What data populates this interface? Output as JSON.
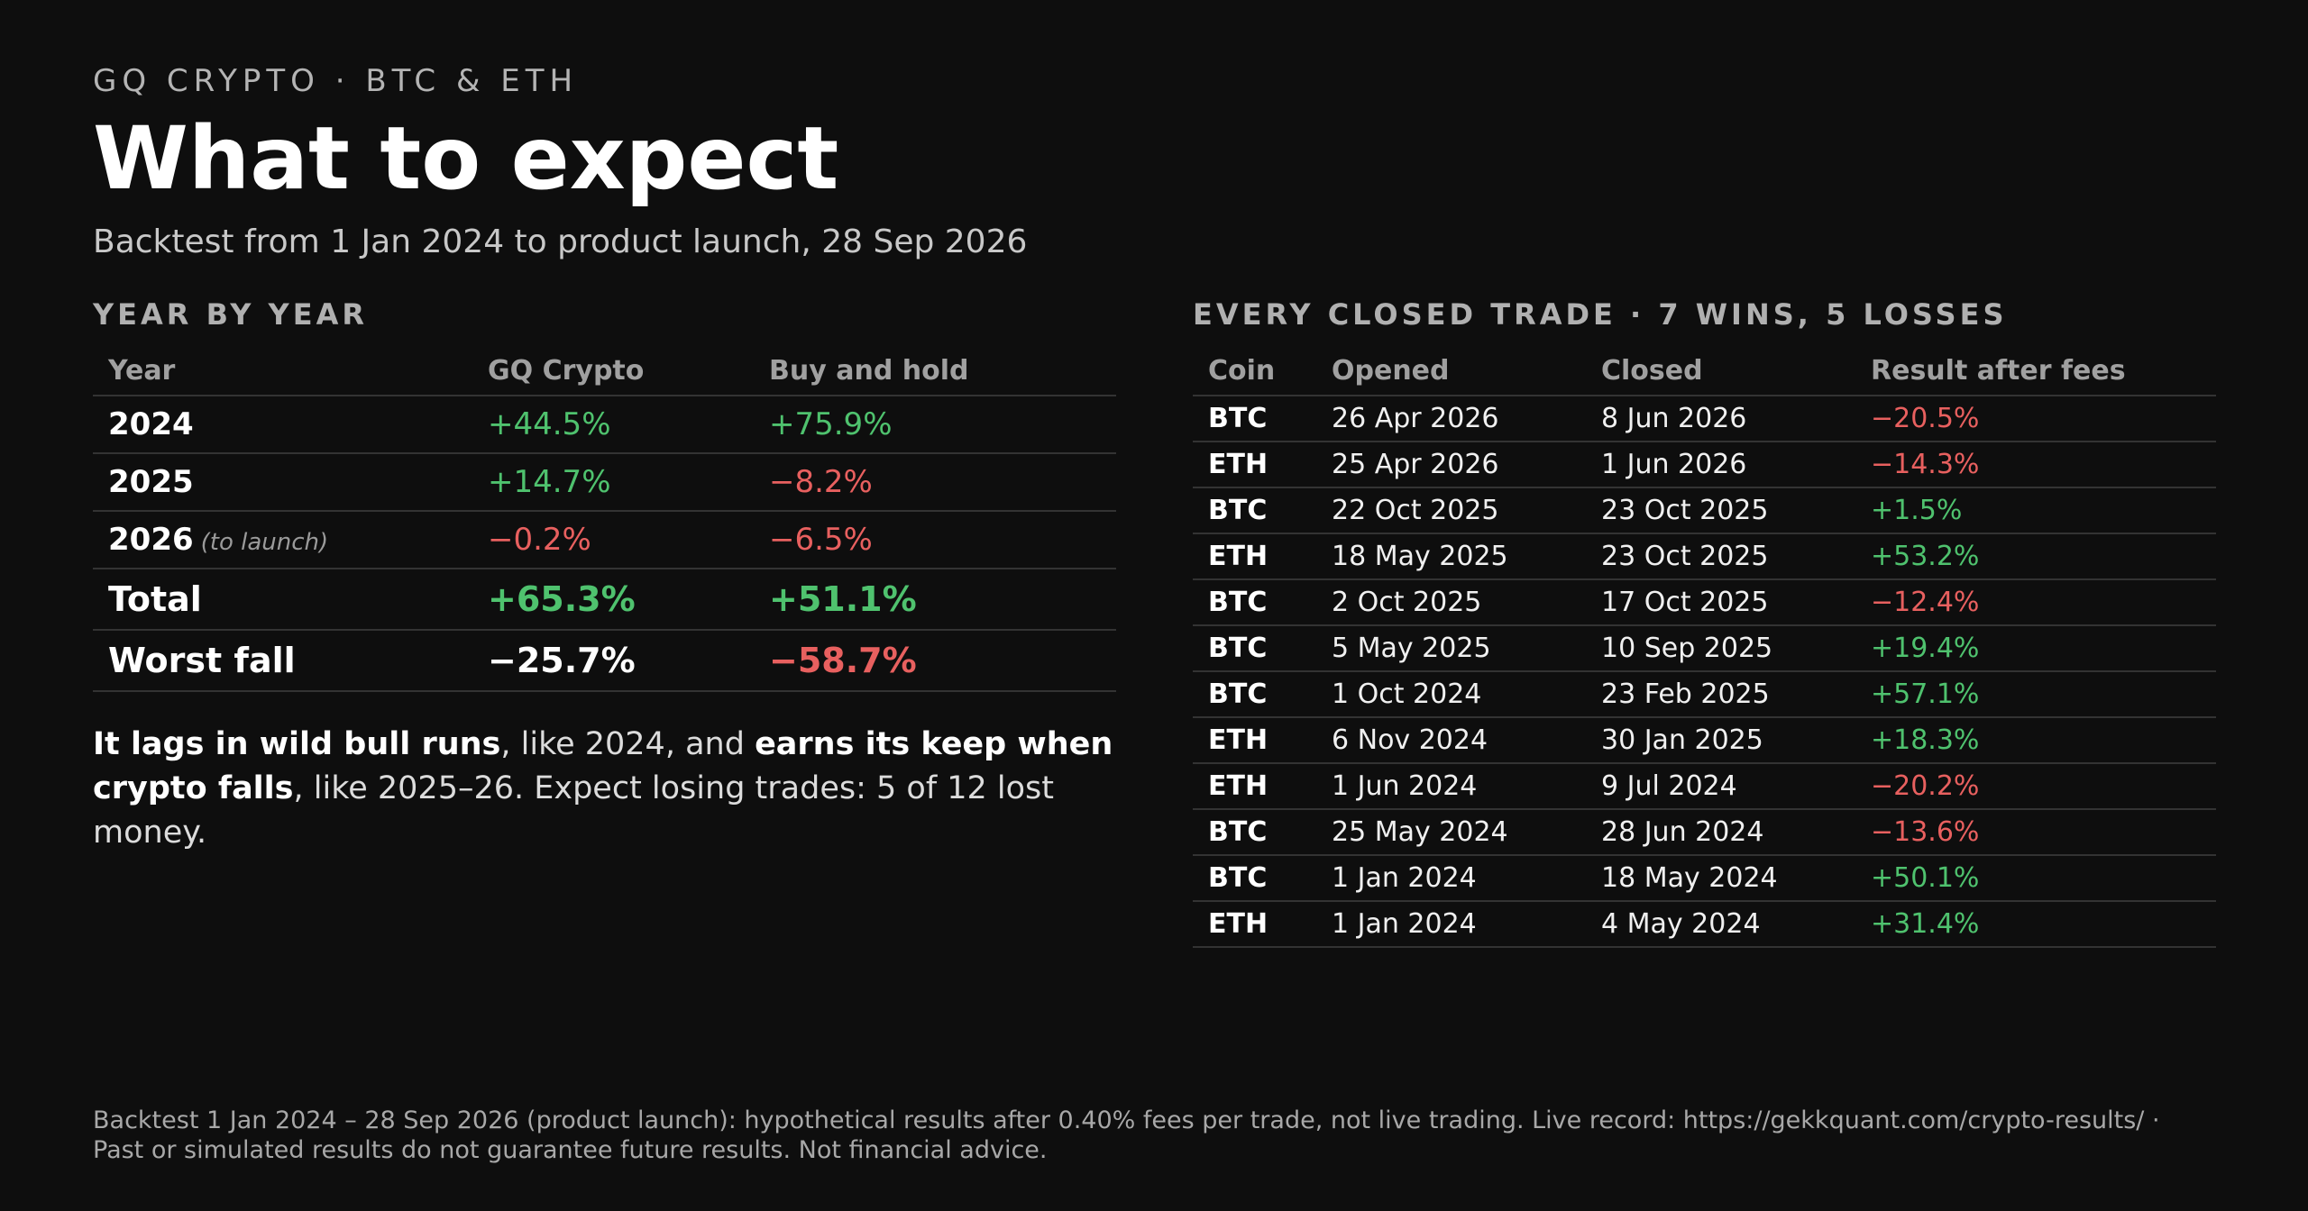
{
  "header": {
    "eyebrow": "GQ CRYPTO · BTC & ETH",
    "title": "What to expect",
    "subtitle": "Backtest from 1 Jan 2024 to product launch, 28 Sep 2026"
  },
  "year_by_year": {
    "heading": "YEAR BY YEAR",
    "columns": [
      "Year",
      "GQ Crypto",
      "Buy and hold"
    ],
    "rows": [
      {
        "year": "2024",
        "note": "",
        "gq": "+44.5%",
        "hold": "+75.9%"
      },
      {
        "year": "2025",
        "note": "",
        "gq": "+14.7%",
        "hold": "−8.2%"
      },
      {
        "year": "2026",
        "note": "(to launch)",
        "gq": "−0.2%",
        "hold": "−6.5%"
      },
      {
        "year": "Total",
        "note": "",
        "gq": "+65.3%",
        "hold": "+51.1%"
      },
      {
        "year": "Worst fall",
        "note": "",
        "gq": "−25.7%",
        "hold": "−58.7%"
      }
    ]
  },
  "description": {
    "b1": "It lags in wild bull runs",
    "t1": ", like 2024, and ",
    "b2": "earns its keep when crypto falls",
    "t2": ", like 2025–26. Expect losing trades: 5 of 12 lost money."
  },
  "trades": {
    "heading": "EVERY CLOSED TRADE · 7 WINS, 5 LOSSES",
    "columns": [
      "Coin",
      "Opened",
      "Closed",
      "Result after fees"
    ],
    "rows": [
      {
        "coin": "BTC",
        "opened": "26 Apr 2026",
        "closed": "8 Jun 2026",
        "result": "−20.5%"
      },
      {
        "coin": "ETH",
        "opened": "25 Apr 2026",
        "closed": "1 Jun 2026",
        "result": "−14.3%"
      },
      {
        "coin": "BTC",
        "opened": "22 Oct 2025",
        "closed": "23 Oct 2025",
        "result": "+1.5%"
      },
      {
        "coin": "ETH",
        "opened": "18 May 2025",
        "closed": "23 Oct 2025",
        "result": "+53.2%"
      },
      {
        "coin": "BTC",
        "opened": "2 Oct 2025",
        "closed": "17 Oct 2025",
        "result": "−12.4%"
      },
      {
        "coin": "BTC",
        "opened": "5 May 2025",
        "closed": "10 Sep 2025",
        "result": "+19.4%"
      },
      {
        "coin": "BTC",
        "opened": "1 Oct 2024",
        "closed": "23 Feb 2025",
        "result": "+57.1%"
      },
      {
        "coin": "ETH",
        "opened": "6 Nov 2024",
        "closed": "30 Jan 2025",
        "result": "+18.3%"
      },
      {
        "coin": "ETH",
        "opened": "1 Jun 2024",
        "closed": "9 Jul 2024",
        "result": "−20.2%"
      },
      {
        "coin": "BTC",
        "opened": "25 May 2024",
        "closed": "28 Jun 2024",
        "result": "−13.6%"
      },
      {
        "coin": "BTC",
        "opened": "1 Jan 2024",
        "closed": "18 May 2024",
        "result": "+50.1%"
      },
      {
        "coin": "ETH",
        "opened": "1 Jan 2024",
        "closed": "4 May 2024",
        "result": "+31.4%"
      }
    ]
  },
  "footer": {
    "line1": "Backtest 1 Jan 2024 – 28 Sep 2026 (product launch): hypothetical results after 0.40% fees per trade, not live trading. Live record: https://gekkquant.com/crypto-results/ ·",
    "line2": "Past or simulated results do not guarantee future results. Not financial advice."
  },
  "colors": {
    "positive": "#4fc26e",
    "negative": "#e8605f",
    "background": "#0e0e0e"
  }
}
